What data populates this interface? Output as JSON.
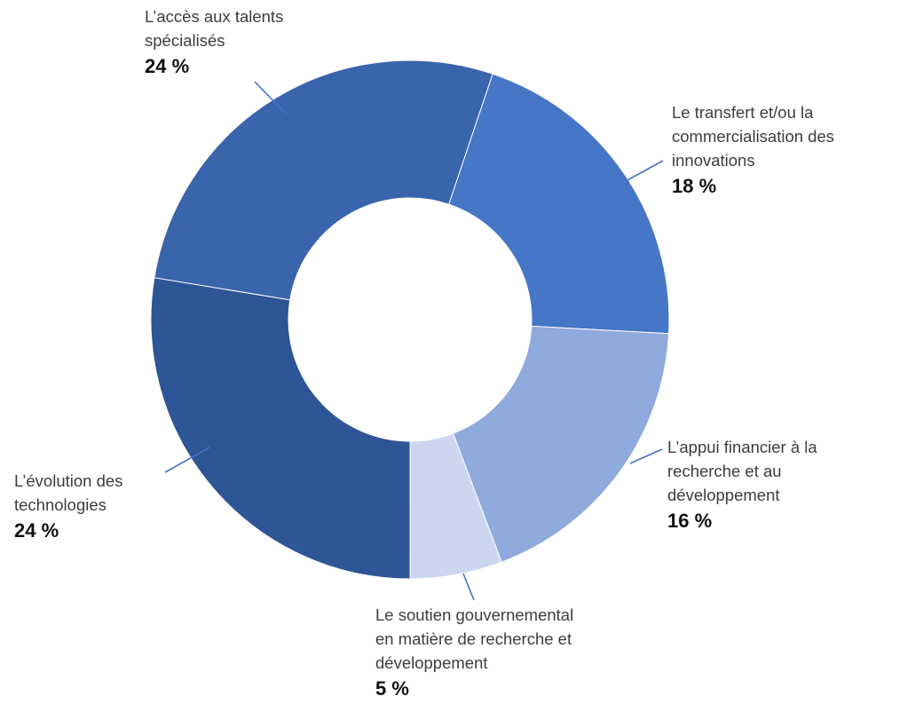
{
  "chart_data": {
    "type": "pie",
    "subtype": "donut",
    "title": "",
    "legend_position": "none",
    "labels_style": "callout",
    "start_angle_deg": 279.3,
    "direction": "clockwise",
    "hole_ratio": 0.47,
    "values_sum": 87,
    "segments": [
      {
        "label": "L’accès aux talents spécialisés",
        "label_lines": [
          "L’accès aux talents",
          "spécialisés"
        ],
        "value": 24,
        "pct_label": "24 %",
        "color": "#3a64ab"
      },
      {
        "label": "Le transfert et/ou la commercialisation des innovations",
        "label_lines": [
          "Le transfert et/ou la",
          "commercialisation des",
          "innovations"
        ],
        "value": 18,
        "pct_label": "18 %",
        "color": "#4676c6"
      },
      {
        "label": "L’appui financier à la recherche et au développement",
        "label_lines": [
          "L’appui financier à la",
          "recherche et au",
          "développement"
        ],
        "value": 16,
        "pct_label": "16 %",
        "color": "#8faadc"
      },
      {
        "label": "Le soutien gouvernemental en matière de recherche et développement",
        "label_lines": [
          "Le soutien gouvernemental",
          "en matière de recherche et",
          "développement"
        ],
        "value": 5,
        "pct_label": "5 %",
        "color": "#ccd6ef"
      },
      {
        "label": "L’évolution des technologies",
        "label_lines": [
          "L’évolution des",
          "technologies"
        ],
        "value": 24,
        "pct_label": "24 %",
        "color": "#2e5596"
      }
    ],
    "leader_line_color": "#4472c4"
  }
}
